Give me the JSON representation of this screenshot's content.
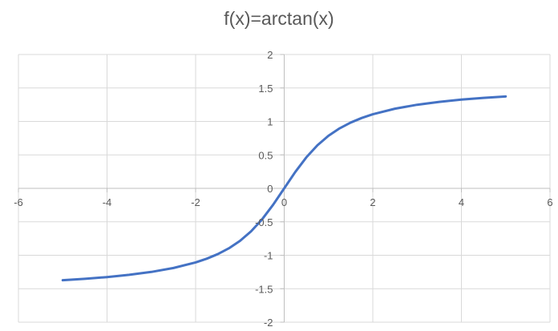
{
  "chart_data": {
    "type": "line",
    "title": "f(x)=arctan(x)",
    "xlabel": "",
    "ylabel": "",
    "xlim": [
      -6,
      6
    ],
    "ylim": [
      -2,
      2
    ],
    "x_ticks": [
      -6,
      -4,
      -2,
      0,
      2,
      4,
      6
    ],
    "y_ticks": [
      -2,
      -1.5,
      -1,
      -0.5,
      0,
      0.5,
      1,
      1.5,
      2
    ],
    "x_tick_labels": [
      "-6",
      "-4",
      "-2",
      "0",
      "2",
      "4",
      "6"
    ],
    "y_tick_labels": [
      "-2",
      "-1.5",
      "-1",
      "-0.5",
      "0",
      "0.5",
      "1",
      "1.5",
      "2"
    ],
    "grid": true,
    "legend": "none",
    "series": [
      {
        "color": "#4472c4",
        "x": [
          -5,
          -4.5,
          -4,
          -3.5,
          -3,
          -2.5,
          -2,
          -1.75,
          -1.5,
          -1.25,
          -1,
          -0.75,
          -0.5,
          -0.25,
          0,
          0.25,
          0.5,
          0.75,
          1,
          1.25,
          1.5,
          1.75,
          2,
          2.5,
          3,
          3.5,
          4,
          4.5,
          5
        ],
        "y": [
          -1.3734,
          -1.3521,
          -1.3258,
          -1.2925,
          -1.249,
          -1.1903,
          -1.1071,
          -1.0517,
          -0.9828,
          -0.8961,
          -0.7854,
          -0.6435,
          -0.4636,
          -0.245,
          0,
          0.245,
          0.4636,
          0.6435,
          0.7854,
          0.8961,
          0.9828,
          1.0517,
          1.1071,
          1.1903,
          1.249,
          1.2925,
          1.3258,
          1.3521,
          1.3734
        ]
      }
    ]
  },
  "colors": {
    "gridline": "#d9d9d9",
    "axis": "#bfbfbf",
    "text": "#595959"
  }
}
